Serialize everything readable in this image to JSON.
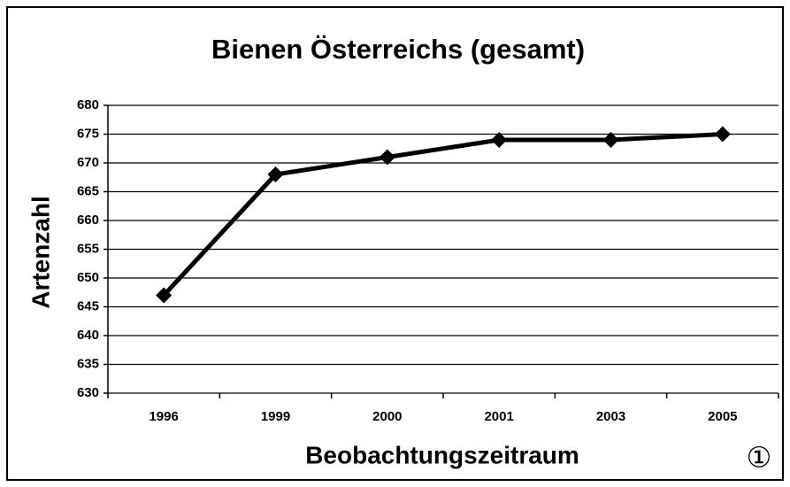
{
  "chart_data": {
    "type": "line",
    "title": "Bienen Österreichs (gesamt)",
    "x_label": "Beobachtungszeitraum",
    "y_label": "Artenzahl",
    "annotation": "①",
    "categories": [
      "1996",
      "1999",
      "2000",
      "2001",
      "2003",
      "2005"
    ],
    "series": [
      {
        "name": "Artenzahl",
        "color": "#000000",
        "values": [
          647,
          668,
          671,
          674,
          674,
          675
        ]
      }
    ],
    "ylim": [
      630,
      680
    ],
    "yticks": [
      630,
      635,
      640,
      645,
      650,
      655,
      660,
      665,
      670,
      675,
      680
    ],
    "grid": true
  }
}
